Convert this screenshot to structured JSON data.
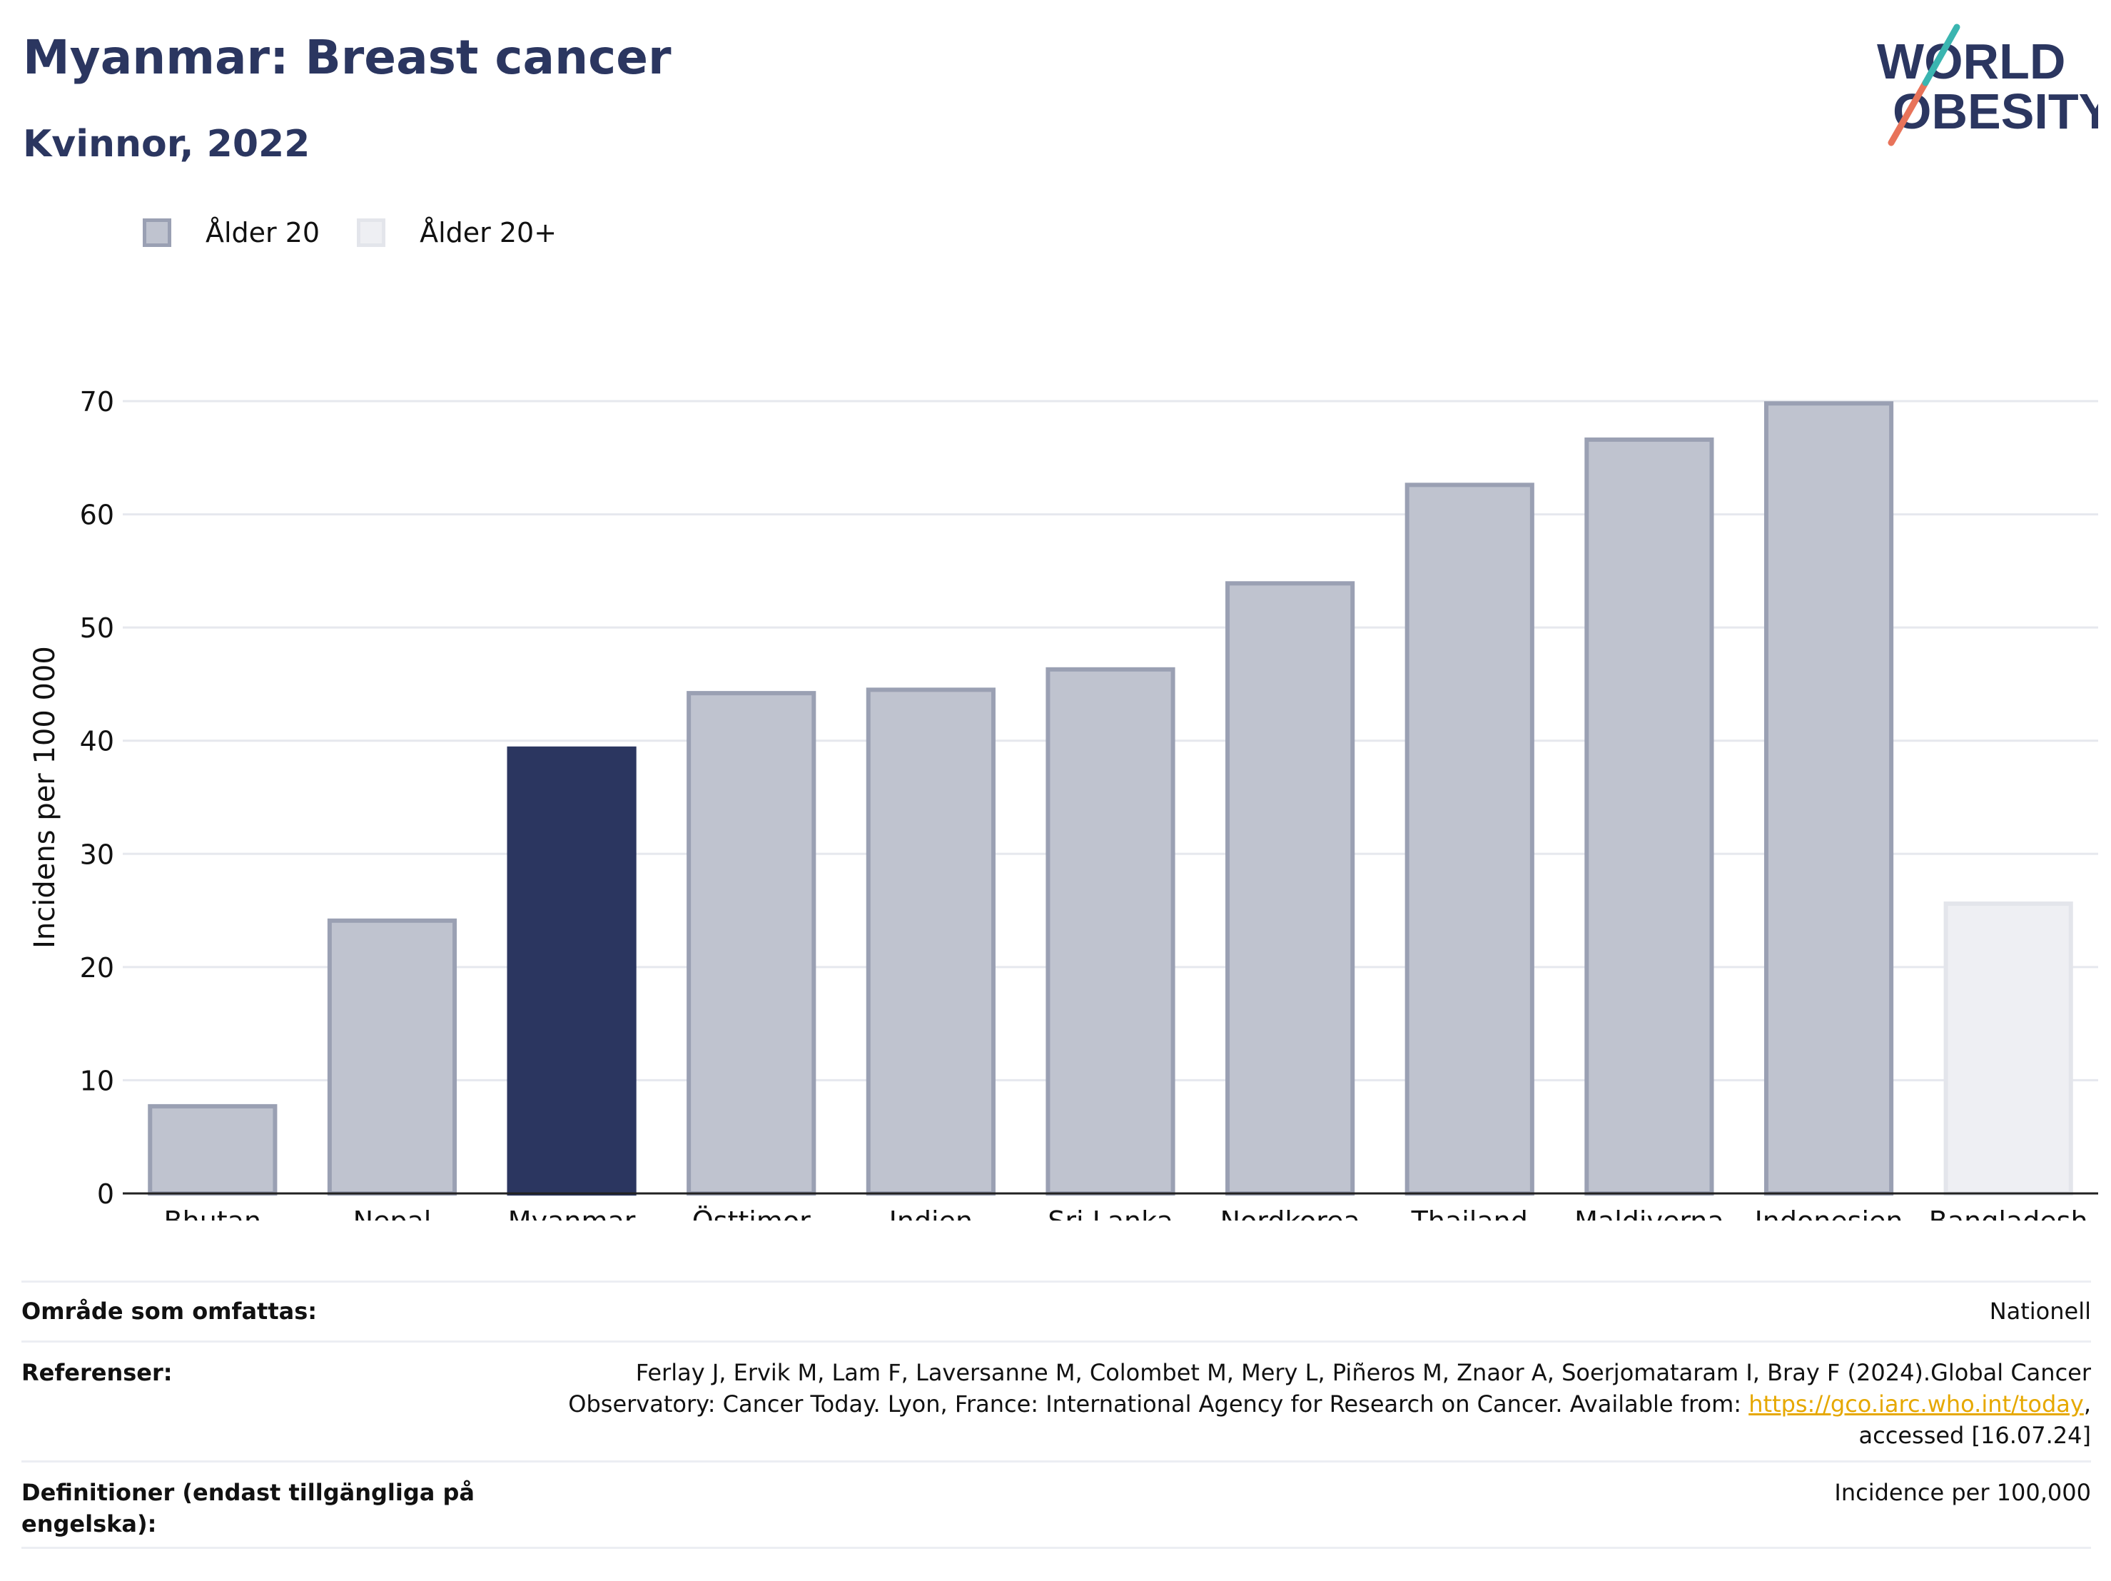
{
  "header": {
    "title": "Myanmar: Breast cancer",
    "subtitle": "Kvinnor, 2022"
  },
  "logo": {
    "line1": "WORLD",
    "line2": "OBESITY"
  },
  "legend": {
    "items": [
      {
        "label": "Ålder 20",
        "color": "#bfc3cf"
      },
      {
        "label": "Ålder 20+",
        "color": "#eeeff3"
      }
    ]
  },
  "chart_data": {
    "type": "bar",
    "categories": [
      "Bhutan",
      "Nepal",
      "Myanmar",
      "Östtimor",
      "Indien",
      "Sri Lanka",
      "Nordkorea",
      "Thailand",
      "Maldiverna",
      "Indonesien",
      "Bangladesh"
    ],
    "series": [
      {
        "name": "Ålder 20",
        "values": [
          7.7,
          24.1,
          39.3,
          44.2,
          44.5,
          46.3,
          53.9,
          62.6,
          66.6,
          69.8,
          null
        ]
      },
      {
        "name": "Ålder 20+",
        "values": [
          null,
          null,
          null,
          null,
          null,
          null,
          null,
          null,
          null,
          null,
          25.6
        ]
      }
    ],
    "highlight": "Myanmar",
    "highlight_color": "#2b3660",
    "bar_color": "#bfc3cf",
    "bar_border_color": "#9aa0b3",
    "age20plus_color": "#eeeff3",
    "ylabel": "Incidens per 100 000",
    "xlabel": "",
    "ylim": [
      0,
      70
    ],
    "yticks": [
      0,
      10,
      20,
      30,
      40,
      50,
      60,
      70
    ],
    "grid": true,
    "legend_position": "top-left"
  },
  "info": {
    "coverage_label": "Område som omfattas:",
    "coverage_value": "Nationell",
    "references_label": "Referenser:",
    "references_line1": "Ferlay J, Ervik M, Lam F, Laversanne M, Colombet M, Mery L, Piñeros M, Znaor A, Soerjomataram I, Bray F (2024).Global Cancer",
    "references_line2_pre": "Observatory: Cancer Today. Lyon, France: International Agency for Research on Cancer. Available from: ",
    "references_link": "https://gco.iarc.who.int/today",
    "references_line2_post": ",",
    "references_line3": "accessed [16.07.24]",
    "definitions_label": "Definitioner (endast tillgängliga på engelska):",
    "definitions_value": "Incidence per 100,000"
  }
}
